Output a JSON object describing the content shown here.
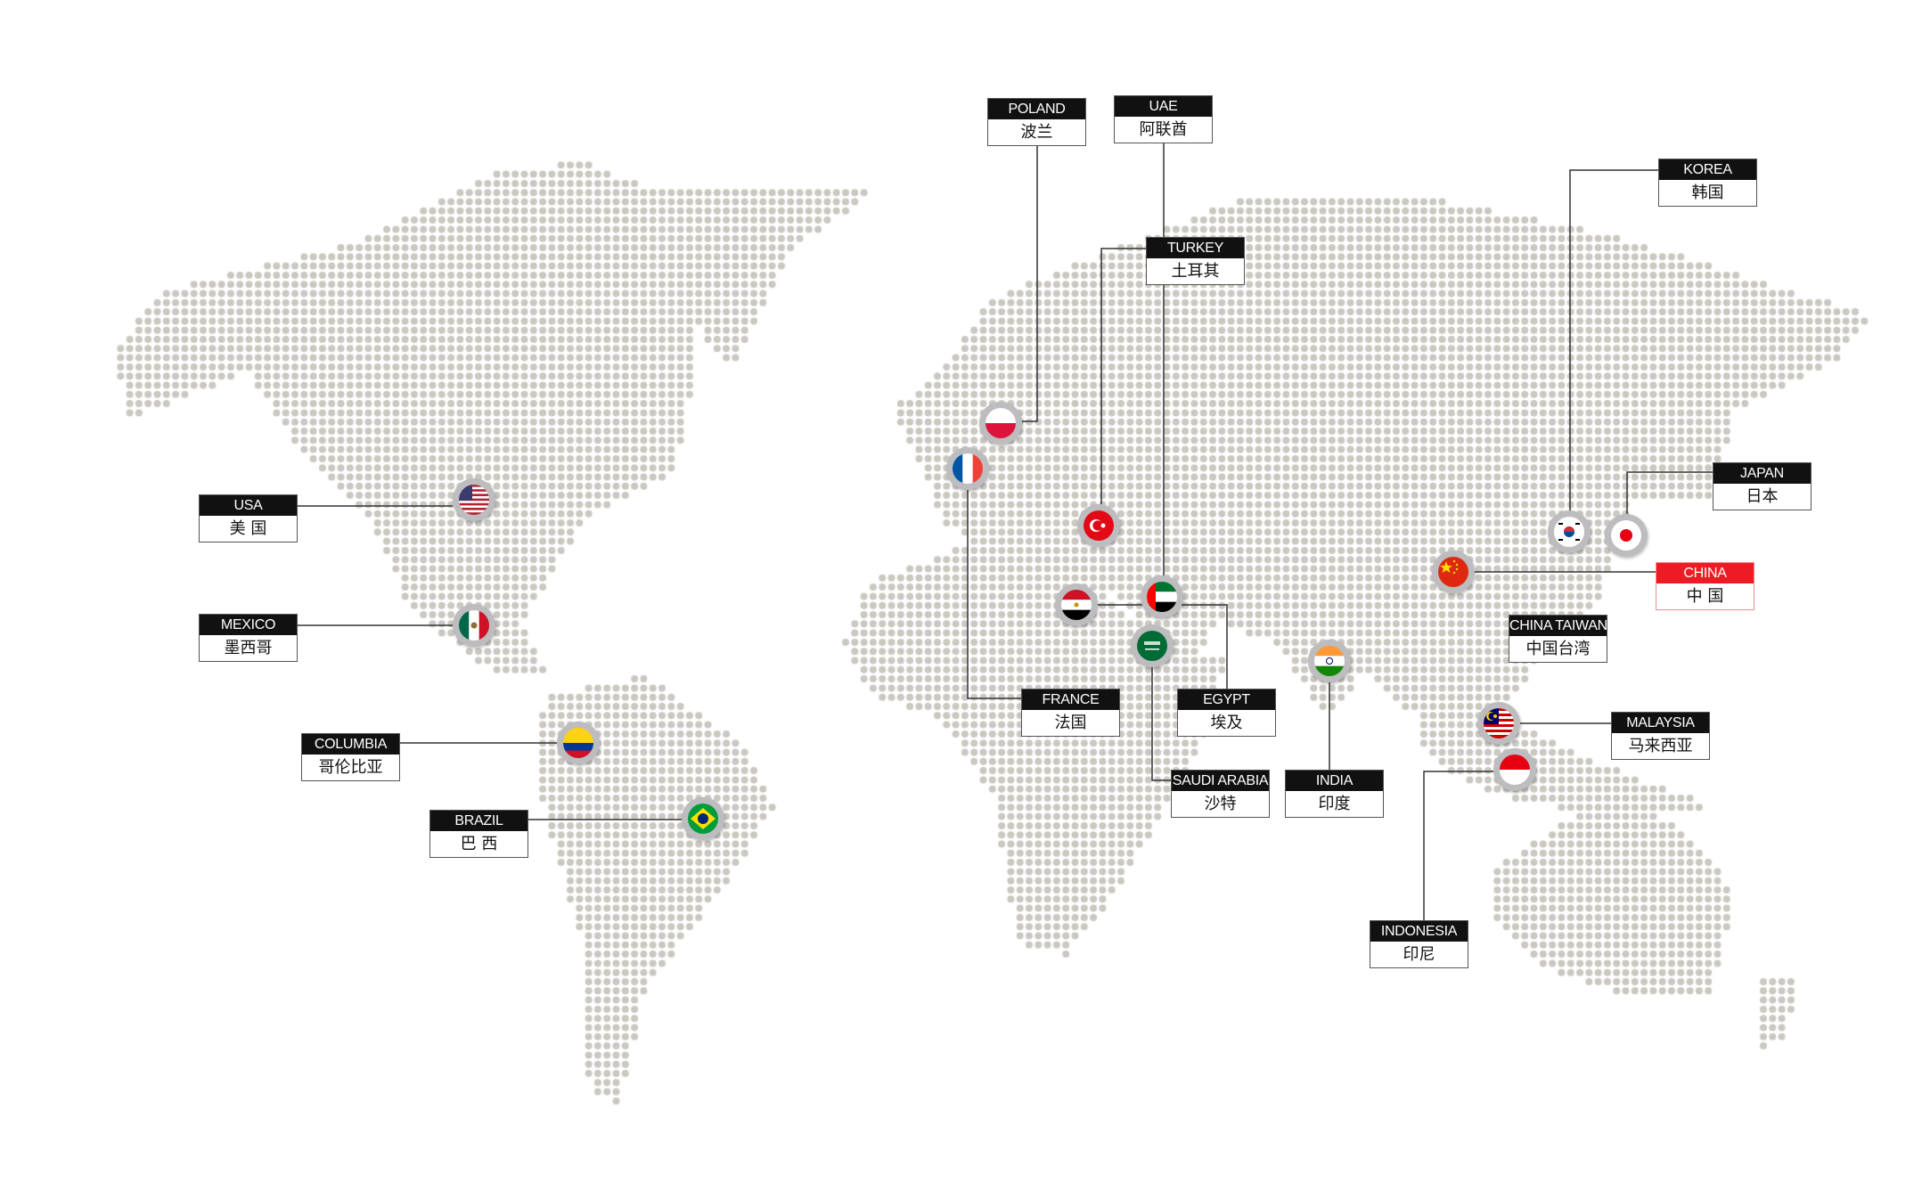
{
  "map": {
    "dot_color": "#cbc8c2",
    "line_color": "#333333",
    "highlight_color": "#ed1c24",
    "locations": [
      {
        "id": "poland",
        "en": "POLAND",
        "zh": "波兰",
        "flag": "poland-flag"
      },
      {
        "id": "uae",
        "en": "UAE",
        "zh": "阿联酋",
        "flag": "uae-flag"
      },
      {
        "id": "turkey",
        "en": "TURKEY",
        "zh": "土耳其",
        "flag": "turkey-flag"
      },
      {
        "id": "korea",
        "en": "KOREA",
        "zh": "韩国",
        "flag": "korea-flag"
      },
      {
        "id": "japan",
        "en": "JAPAN",
        "zh": "日本",
        "flag": "japan-flag"
      },
      {
        "id": "china",
        "en": "CHINA",
        "zh": "中 国",
        "flag": "china-flag",
        "highlight": true
      },
      {
        "id": "taiwan",
        "en": "CHINA TAIWAN",
        "zh": "中国台湾"
      },
      {
        "id": "malaysia",
        "en": "MALAYSIA",
        "zh": "马来西亚",
        "flag": "malaysia-flag"
      },
      {
        "id": "indonesia",
        "en": "INDONESIA",
        "zh": "印尼",
        "flag": "indonesia-flag"
      },
      {
        "id": "india",
        "en": "INDIA",
        "zh": "印度",
        "flag": "india-flag"
      },
      {
        "id": "saudi",
        "en": "SAUDI ARABIA",
        "zh": "沙特",
        "flag": "saudi-arabia-flag"
      },
      {
        "id": "egypt",
        "en": "EGYPT",
        "zh": "埃及",
        "flag": "egypt-flag"
      },
      {
        "id": "france",
        "en": "FRANCE",
        "zh": "法国",
        "flag": "france-flag"
      },
      {
        "id": "usa",
        "en": "USA",
        "zh": "美 国",
        "flag": "usa-flag"
      },
      {
        "id": "mexico",
        "en": "MEXICO",
        "zh": "墨西哥",
        "flag": "mexico-flag"
      },
      {
        "id": "columbia",
        "en": "COLUMBIA",
        "zh": "哥伦比亚",
        "flag": "colombia-flag"
      },
      {
        "id": "brazil",
        "en": "BRAZIL",
        "zh": "巴 西",
        "flag": "brazil-flag"
      }
    ]
  }
}
